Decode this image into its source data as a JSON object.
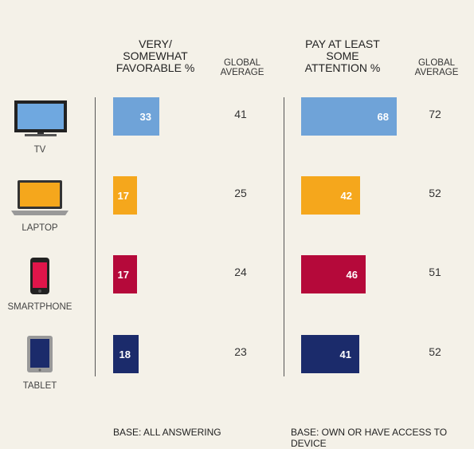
{
  "headers": {
    "left_title_1": "VERY/",
    "left_title_2": "SOMEWHAT",
    "left_title_3": "FAVORABLE %",
    "left_avg_1": "GLOBAL",
    "left_avg_2": "AVERAGE",
    "right_title_1": "PAY AT LEAST",
    "right_title_2": "SOME",
    "right_title_3": "ATTENTION %",
    "right_avg_1": "GLOBAL",
    "right_avg_2": "AVERAGE"
  },
  "footnotes": {
    "left": "BASE: ALL ANSWERING",
    "right": "BASE: OWN OR HAVE ACCESS TO DEVICE"
  },
  "colors": {
    "tv": "#6fa3d8",
    "laptop": "#f5a71c",
    "smartphone": "#b5093a",
    "tablet": "#1b2b6b"
  },
  "chart_data": {
    "type": "bar",
    "categories": [
      "TV",
      "LAPTOP",
      "SMARTPHONE",
      "TABLET"
    ],
    "series": [
      {
        "name": "VERY/ SOMEWHAT FAVORABLE %",
        "values": [
          33,
          17,
          17,
          18
        ],
        "global_average": [
          41,
          25,
          24,
          23
        ]
      },
      {
        "name": "PAY AT LEAST SOME ATTENTION %",
        "values": [
          68,
          42,
          46,
          41
        ],
        "global_average": [
          72,
          52,
          51,
          52
        ]
      }
    ],
    "icons": [
      "tv-icon",
      "laptop-icon",
      "smartphone-icon",
      "tablet-icon"
    ]
  }
}
